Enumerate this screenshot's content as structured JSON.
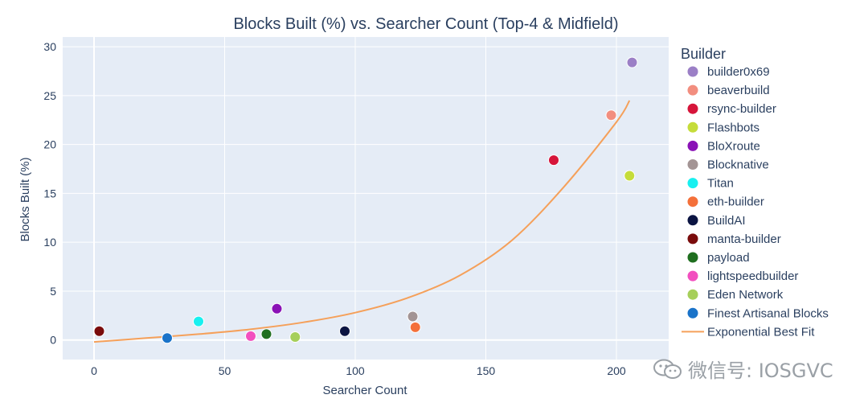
{
  "chart_data": {
    "type": "scatter",
    "title": "Blocks Built (%) vs. Searcher Count (Top-4 & Midfield)",
    "xlabel": "Searcher Count",
    "ylabel": "Blocks Built (%)",
    "xlim": [
      -12,
      220
    ],
    "ylim": [
      -2,
      31
    ],
    "x_ticks": [
      0,
      50,
      100,
      150,
      200
    ],
    "y_ticks": [
      0,
      5,
      10,
      15,
      20,
      25,
      30
    ],
    "grid": true,
    "legend_title": "Builder",
    "legend_position": "right",
    "series": [
      {
        "name": "builder0x69",
        "x": 206,
        "y": 28.4,
        "color": "#9b7fc6"
      },
      {
        "name": "beaverbuild",
        "x": 198,
        "y": 23.0,
        "color": "#f28e7f"
      },
      {
        "name": "rsync-builder",
        "x": 176,
        "y": 18.4,
        "color": "#d6153a"
      },
      {
        "name": "Flashbots",
        "x": 205,
        "y": 16.8,
        "color": "#c5dc3a"
      },
      {
        "name": "BloXroute",
        "x": 70,
        "y": 3.2,
        "color": "#8a12b6"
      },
      {
        "name": "Blocknative",
        "x": 122,
        "y": 2.4,
        "color": "#a39494"
      },
      {
        "name": "Titan",
        "x": 40,
        "y": 1.9,
        "color": "#18f0f0"
      },
      {
        "name": "eth-builder",
        "x": 123,
        "y": 1.3,
        "color": "#f4703a"
      },
      {
        "name": "BuildAI",
        "x": 96,
        "y": 0.9,
        "color": "#0b1442"
      },
      {
        "name": "manta-builder",
        "x": 2,
        "y": 0.9,
        "color": "#7a0c0c"
      },
      {
        "name": "payload",
        "x": 66,
        "y": 0.6,
        "color": "#1f6e1f"
      },
      {
        "name": "lightspeedbuilder",
        "x": 60,
        "y": 0.4,
        "color": "#f24fbf"
      },
      {
        "name": "Eden Network",
        "x": 77,
        "y": 0.3,
        "color": "#a6cf5a"
      },
      {
        "name": "Finest Artisanal Blocks",
        "x": 28,
        "y": 0.2,
        "color": "#1a73c9"
      }
    ],
    "fit": {
      "name": "Exponential Best Fit",
      "color": "#f5a05a",
      "x": [
        0,
        20,
        40,
        60,
        80,
        100,
        120,
        140,
        160,
        180,
        200,
        205
      ],
      "y": [
        -0.2,
        0.2,
        0.6,
        1.1,
        1.8,
        2.8,
        4.3,
        6.6,
        10.2,
        15.7,
        22.3,
        24.5
      ]
    }
  },
  "watermark": {
    "text": "微信号: IOSGVC",
    "icon": "wechat-icon"
  }
}
